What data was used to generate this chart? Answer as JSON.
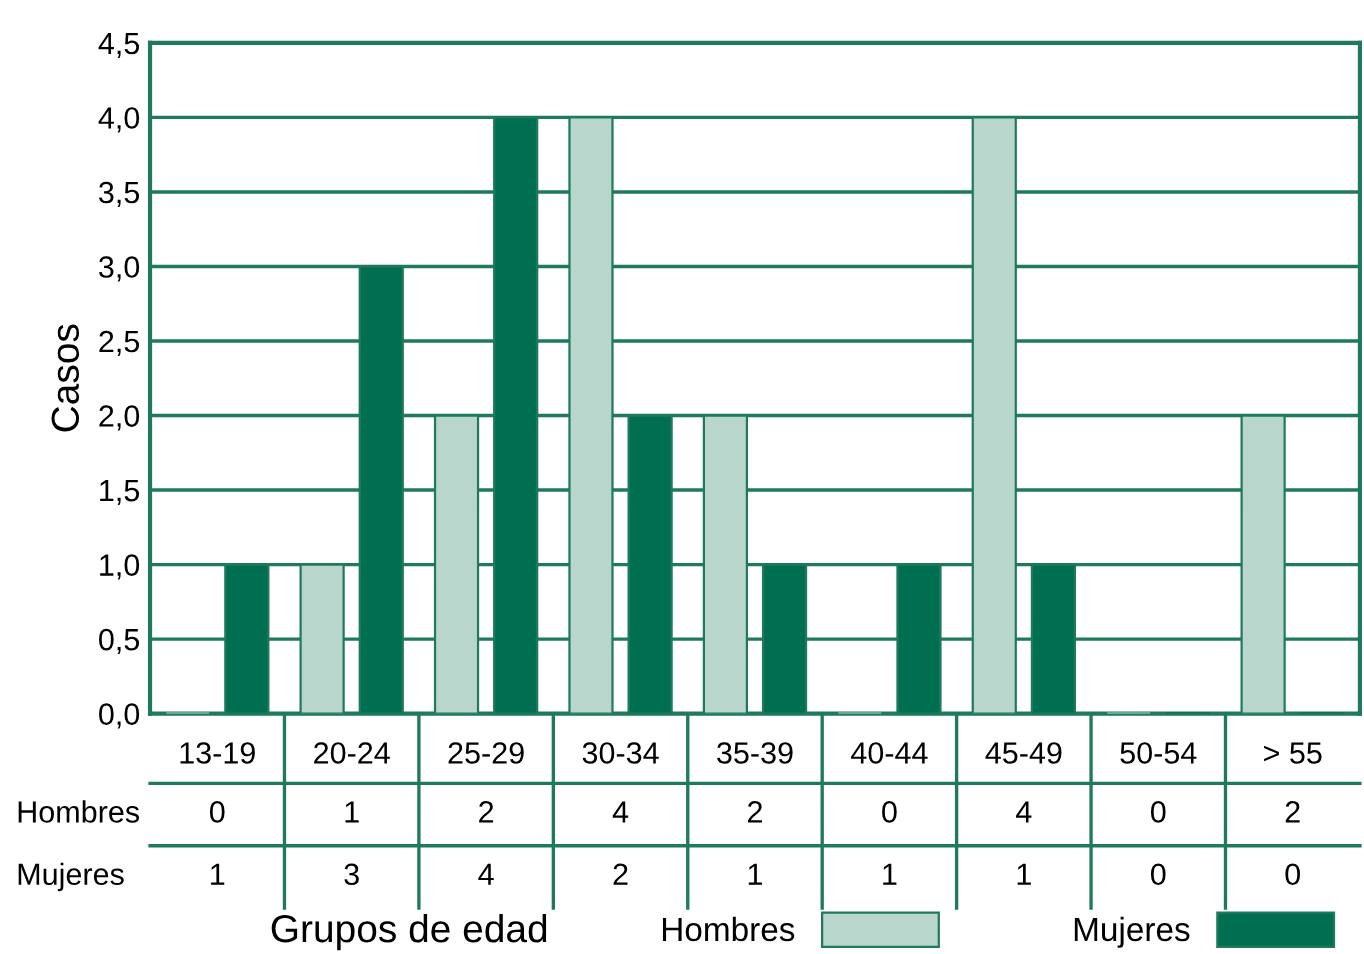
{
  "chart_data": {
    "type": "bar",
    "xlabel": "Grupos de edad",
    "ylabel": "Casos",
    "categories": [
      "13-19",
      "20-24",
      "25-29",
      "30-34",
      "35-39",
      "40-44",
      "45-49",
      "50-54",
      "> 55"
    ],
    "series": [
      {
        "name": "Hombres",
        "color": "#b9d6cc",
        "values": [
          0,
          1,
          2,
          4,
          2,
          0,
          4,
          0,
          2
        ]
      },
      {
        "name": "Mujeres",
        "color": "#006f51",
        "values": [
          1,
          3,
          4,
          2,
          1,
          1,
          1,
          0,
          0
        ]
      }
    ],
    "ylim": [
      0,
      4.5
    ],
    "yticks": [
      {
        "value": 0,
        "label": "0,0"
      },
      {
        "value": 0.5,
        "label": "0,5"
      },
      {
        "value": 1,
        "label": "1,0"
      },
      {
        "value": 1.5,
        "label": "1,5"
      },
      {
        "value": 2,
        "label": "2,0"
      },
      {
        "value": 2.5,
        "label": "2,5"
      },
      {
        "value": 3,
        "label": "3,0"
      },
      {
        "value": 3.5,
        "label": "3,5"
      },
      {
        "value": 4,
        "label": "4,0"
      },
      {
        "value": 4.5,
        "label": "4,5"
      }
    ],
    "grid": "y",
    "legend": "bottom right",
    "data_labels": true
  }
}
